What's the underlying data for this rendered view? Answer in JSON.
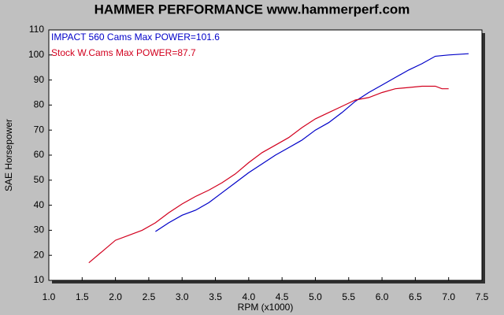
{
  "chart_data": {
    "type": "line",
    "title": "HAMMER PERFORMANCE www.hammerperf.com",
    "x_label": "RPM (x1000)",
    "y_label": "SAE Horsepower",
    "xlim": [
      1.0,
      7.5
    ],
    "ylim": [
      10,
      110
    ],
    "xticks": [
      {
        "value": 1,
        "label": "1.0"
      },
      1.5,
      {
        "value": 2,
        "label": "2.0"
      },
      2.5,
      {
        "value": 3,
        "label": "3.0"
      },
      3.5,
      {
        "value": 4,
        "label": "4.0"
      },
      4.5,
      {
        "value": 5,
        "label": "5.0"
      },
      5.5,
      {
        "value": 6,
        "label": "6.0"
      },
      6.5,
      {
        "value": 7,
        "label": "7.0"
      },
      7.5
    ],
    "yticks": [
      10,
      20,
      30,
      40,
      50,
      60,
      70,
      80,
      90,
      100,
      110
    ],
    "series": [
      {
        "name": "IMPACT 560 Cams Max POWER=101.6",
        "color": "#0000c8",
        "x": [
          2.6,
          2.8,
          3.0,
          3.2,
          3.4,
          3.6,
          3.8,
          4.0,
          4.2,
          4.4,
          4.6,
          4.8,
          5.0,
          5.2,
          5.4,
          5.6,
          5.8,
          6.0,
          6.2,
          6.4,
          6.6,
          6.8,
          7.0,
          7.3
        ],
        "values": [
          29.5,
          33,
          36,
          38,
          41,
          45,
          49,
          53,
          56.5,
          60,
          63,
          66,
          70,
          73,
          77,
          81.5,
          85,
          88,
          91,
          94,
          96.5,
          99.5,
          100,
          100.5
        ]
      },
      {
        "name": "Stock W.Cams Max POWER=87.7",
        "color": "#d2001e",
        "x": [
          1.6,
          1.8,
          2.0,
          2.2,
          2.4,
          2.6,
          2.8,
          3.0,
          3.2,
          3.4,
          3.6,
          3.8,
          4.0,
          4.2,
          4.4,
          4.6,
          4.8,
          5.0,
          5.2,
          5.4,
          5.6,
          5.8,
          6.0,
          6.2,
          6.4,
          6.6,
          6.8,
          6.9,
          7.0
        ],
        "values": [
          17,
          21.5,
          26,
          28,
          30,
          33,
          37,
          40.5,
          43.5,
          46,
          49,
          52.5,
          57,
          61,
          64,
          67,
          71,
          74.5,
          77,
          79.5,
          82,
          83,
          85,
          86.5,
          87,
          87.5,
          87.5,
          86.5,
          86.5
        ]
      }
    ]
  }
}
